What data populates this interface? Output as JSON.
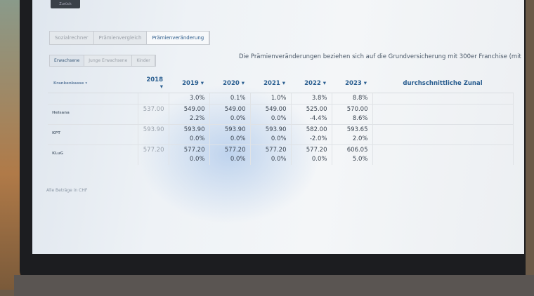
{
  "top_button": "Zurück",
  "tabs": [
    "Sozialrechner",
    "Prämienvergleich",
    "Prämienveränderung"
  ],
  "subtabs": [
    "Erwachsene",
    "Junge Erwachsene",
    "Kinder"
  ],
  "note": "Die Prämienveränderungen beziehen sich auf die Grundversicherung mit 300er Franchise (mit",
  "table": {
    "headers": [
      "Krankenkasse ▾",
      "2018 ▾",
      "2019 ▾",
      "2020 ▾",
      "2021 ▾",
      "2022 ▾",
      "2023 ▾",
      "durchschnittliche Zunal"
    ],
    "partial_row": [
      "",
      "",
      "3.0%",
      "0.1%",
      "1.0%",
      "3.8%",
      "8.8%"
    ],
    "rows": [
      {
        "name": "Helsana",
        "values": [
          "537.00",
          "549.00",
          "549.00",
          "549.00",
          "525.00",
          "570.00"
        ],
        "changes": [
          "",
          "2.2%",
          "0.0%",
          "0.0%",
          "-4.4%",
          "8.6%"
        ]
      },
      {
        "name": "KPT",
        "values": [
          "593.90",
          "593.90",
          "593.90",
          "593.90",
          "582.00",
          "593.65"
        ],
        "changes": [
          "",
          "0.0%",
          "0.0%",
          "0.0%",
          "-2.0%",
          "2.0%"
        ]
      },
      {
        "name": "KLuG",
        "values": [
          "577.20",
          "577.20",
          "577.20",
          "577.20",
          "577.20",
          "606.05"
        ],
        "changes": [
          "",
          "0.0%",
          "0.0%",
          "0.0%",
          "0.0%",
          "5.0%"
        ]
      }
    ]
  },
  "footer": "Alle Beträge in CHF"
}
